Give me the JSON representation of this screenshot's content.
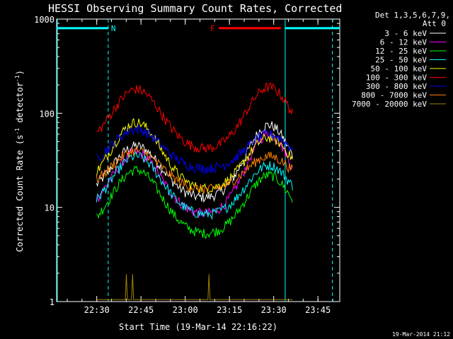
{
  "chart_data": {
    "type": "line",
    "title": "HESSI Observing Summary Count Rates, Corrected",
    "xlabel": "Start Time (19-Mar-14 22:16:22)",
    "ylabel_main": "Corrected Count Rate (s",
    "ylabel_sup1": "-1",
    "ylabel_mid": " detector",
    "ylabel_sup2": "-1",
    "ylabel_end": ")",
    "x_unit": "minutes after 22:16:22",
    "xlim": [
      0,
      96
    ],
    "ylim": [
      1,
      1000
    ],
    "yscale": "log",
    "x_tick_positions": [
      13.6,
      28.6,
      43.6,
      58.6,
      73.6,
      88.6
    ],
    "x_tick_labels": [
      "22:30",
      "22:45",
      "23:00",
      "23:15",
      "23:30",
      "23:45"
    ],
    "y_tick_values": [
      1,
      10,
      100,
      1000
    ],
    "y_tick_labels": [
      "1",
      "10",
      "100",
      "1000"
    ],
    "legend_header": [
      "Det 1,3,5,6,7,9,",
      "Att 0"
    ],
    "legend_placement": "right",
    "series": [
      {
        "name": "3 - 6 keV",
        "color": "#ffffff",
        "peak1": 45,
        "trough": 12,
        "peak2": 75
      },
      {
        "name": "6 - 12 keV",
        "color": "#ff00ff",
        "peak1": 38,
        "trough": 8,
        "peak2": 60
      },
      {
        "name": "12 - 25 keV",
        "color": "#00ff00",
        "peak1": 25,
        "trough": 5,
        "peak2": 22
      },
      {
        "name": "25 - 50 keV",
        "color": "#00ffff",
        "peak1": 35,
        "trough": 8,
        "peak2": 28
      },
      {
        "name": "50 - 100 keV",
        "color": "#ffff00",
        "peak1": 80,
        "trough": 15,
        "peak2": 55
      },
      {
        "name": "100 - 300 keV",
        "color": "#ff0000",
        "peak1": 180,
        "trough": 40,
        "peak2": 190
      },
      {
        "name": "300 - 800 keV",
        "color": "#0000ff",
        "peak1": 68,
        "trough": 25,
        "peak2": 60
      },
      {
        "name": "800 - 7000 keV",
        "color": "#ff8000",
        "peak1": 40,
        "trough": 15,
        "peak2": 35
      },
      {
        "name": "7000 - 20000 keV",
        "color": "#a08000",
        "peak1": 2,
        "trough": 1,
        "peak2": 1
      }
    ],
    "annotations": [
      {
        "label": "N",
        "color": "#00ffff",
        "x_start": 0,
        "x_end": 17.5
      },
      {
        "label": "F",
        "color": "#ff0000",
        "x_start": 55,
        "x_end": 76
      }
    ],
    "night_segments": [
      [
        0,
        17.5
      ],
      [
        77.5,
        96
      ]
    ],
    "footer_date": "19-Mar-2014 21:12"
  }
}
